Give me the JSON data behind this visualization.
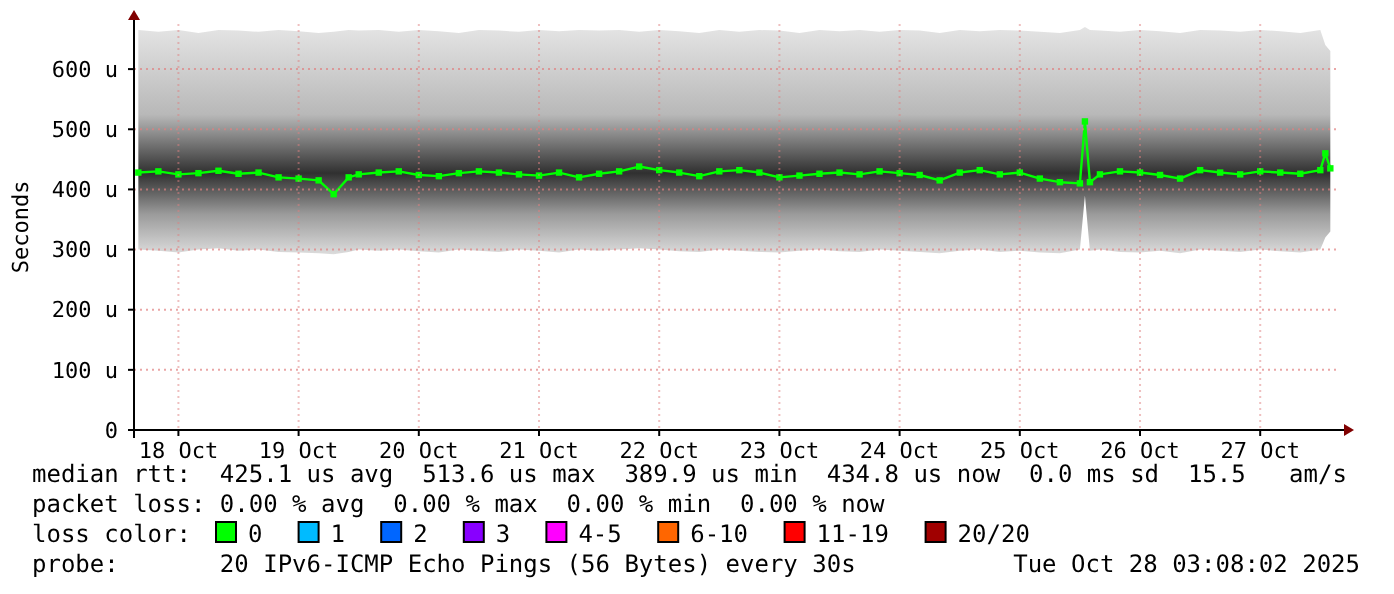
{
  "chart_data": {
    "type": "line",
    "ylabel": "Seconds",
    "legend_title": "loss color:",
    "legend": "bottom",
    "grid": true,
    "marker": "square",
    "xlim": [
      "2025-10-18T03:08",
      "2025-10-28T03:08"
    ],
    "xticks": [
      {
        "value": "2025-10-18T12:00",
        "label": "18 Oct"
      },
      {
        "value": "2025-10-19T12:00",
        "label": "19 Oct"
      },
      {
        "value": "2025-10-20T12:00",
        "label": "20 Oct"
      },
      {
        "value": "2025-10-21T12:00",
        "label": "21 Oct"
      },
      {
        "value": "2025-10-22T12:00",
        "label": "22 Oct"
      },
      {
        "value": "2025-10-23T12:00",
        "label": "23 Oct"
      },
      {
        "value": "2025-10-24T12:00",
        "label": "24 Oct"
      },
      {
        "value": "2025-10-25T12:00",
        "label": "25 Oct"
      },
      {
        "value": "2025-10-26T12:00",
        "label": "26 Oct"
      },
      {
        "value": "2025-10-27T12:00",
        "label": "27 Oct"
      }
    ],
    "ylim": [
      0,
      675
    ],
    "yticks": [
      0,
      {
        "value": 100,
        "label": "100 u"
      },
      {
        "value": 200,
        "label": "200 u"
      },
      {
        "value": 300,
        "label": "300 u"
      },
      {
        "value": 400,
        "label": "400 u"
      },
      {
        "value": 500,
        "label": "500 u"
      },
      {
        "value": 600,
        "label": "600 u"
      }
    ],
    "x": [
      "2025-10-18T04:00",
      "2025-10-18T08:00",
      "2025-10-18T12:00",
      "2025-10-18T16:00",
      "2025-10-18T20:00",
      "2025-10-19T00:00",
      "2025-10-19T04:00",
      "2025-10-19T08:00",
      "2025-10-19T12:00",
      "2025-10-19T16:00",
      "2025-10-19T19:00",
      "2025-10-19T22:00",
      "2025-10-20T00:00",
      "2025-10-20T04:00",
      "2025-10-20T08:00",
      "2025-10-20T12:00",
      "2025-10-20T16:00",
      "2025-10-20T20:00",
      "2025-10-21T00:00",
      "2025-10-21T04:00",
      "2025-10-21T08:00",
      "2025-10-21T12:00",
      "2025-10-21T16:00",
      "2025-10-21T20:00",
      "2025-10-22T00:00",
      "2025-10-22T04:00",
      "2025-10-22T08:00",
      "2025-10-22T12:00",
      "2025-10-22T16:00",
      "2025-10-22T20:00",
      "2025-10-23T00:00",
      "2025-10-23T04:00",
      "2025-10-23T08:00",
      "2025-10-23T12:00",
      "2025-10-23T16:00",
      "2025-10-23T20:00",
      "2025-10-24T00:00",
      "2025-10-24T04:00",
      "2025-10-24T08:00",
      "2025-10-24T12:00",
      "2025-10-24T16:00",
      "2025-10-24T20:00",
      "2025-10-25T00:00",
      "2025-10-25T04:00",
      "2025-10-25T08:00",
      "2025-10-25T12:00",
      "2025-10-25T16:00",
      "2025-10-25T20:00",
      "2025-10-26T00:00",
      "2025-10-26T01:00",
      "2025-10-26T02:00",
      "2025-10-26T04:00",
      "2025-10-26T08:00",
      "2025-10-26T12:00",
      "2025-10-26T16:00",
      "2025-10-26T20:00",
      "2025-10-27T00:00",
      "2025-10-27T04:00",
      "2025-10-27T08:00",
      "2025-10-27T12:00",
      "2025-10-27T16:00",
      "2025-10-27T20:00",
      "2025-10-28T00:00",
      "2025-10-28T01:00",
      "2025-10-28T02:00"
    ],
    "series": [
      {
        "name": "0",
        "color": "#00ff00",
        "values": [
          428,
          430,
          425,
          427,
          431,
          426,
          428,
          420,
          418,
          415,
          392,
          420,
          425,
          428,
          430,
          424,
          422,
          427,
          430,
          428,
          425,
          423,
          428,
          420,
          426,
          430,
          438,
          432,
          428,
          422,
          430,
          432,
          428,
          420,
          423,
          426,
          428,
          425,
          430,
          427,
          424,
          415,
          428,
          432,
          425,
          428,
          418,
          412,
          410,
          513,
          412,
          425,
          430,
          428,
          424,
          418,
          432,
          428,
          425,
          430,
          428,
          426,
          432,
          460,
          435
        ],
        "lower": [
          300,
          298,
          295,
          300,
          302,
          298,
          300,
          296,
          295,
          294,
          292,
          296,
          300,
          298,
          300,
          297,
          295,
          300,
          298,
          296,
          300,
          298,
          295,
          300,
          298,
          300,
          302,
          300,
          297,
          296,
          300,
          298,
          296,
          295,
          298,
          300,
          297,
          296,
          300,
          298,
          296,
          294,
          298,
          300,
          296,
          298,
          295,
          294,
          300,
          390,
          298,
          300,
          296,
          295,
          298,
          294,
          300,
          298,
          296,
          300,
          297,
          295,
          300,
          320,
          330
        ],
        "upper": [
          665,
          662,
          665,
          660,
          665,
          664,
          662,
          665,
          663,
          660,
          662,
          665,
          664,
          665,
          662,
          665,
          663,
          660,
          665,
          664,
          662,
          665,
          663,
          665,
          664,
          665,
          662,
          665,
          663,
          660,
          665,
          662,
          665,
          664,
          660,
          665,
          663,
          665,
          662,
          665,
          664,
          660,
          665,
          663,
          665,
          664,
          662,
          660,
          665,
          670,
          665,
          664,
          662,
          665,
          663,
          660,
          665,
          664,
          662,
          665,
          663,
          660,
          665,
          640,
          630
        ]
      },
      {
        "name": "1",
        "color": "#00bbff",
        "values": [
          null,
          null,
          null,
          null,
          null,
          null,
          null,
          null,
          null,
          null,
          null,
          null,
          null,
          null,
          null,
          null,
          null,
          null,
          null,
          null,
          null,
          null,
          null,
          null,
          null,
          null,
          null,
          null,
          null,
          null,
          null,
          null,
          null,
          null,
          null,
          null,
          null,
          null,
          null,
          null,
          null,
          null,
          null,
          null,
          null,
          null,
          null,
          null,
          null,
          null,
          null,
          null,
          null,
          null,
          null,
          null,
          null,
          null,
          null,
          null,
          null,
          null,
          null,
          null,
          null
        ]
      },
      {
        "name": "2",
        "color": "#0066ff",
        "values": [
          null,
          null,
          null,
          null,
          null,
          null,
          null,
          null,
          null,
          null,
          null,
          null,
          null,
          null,
          null,
          null,
          null,
          null,
          null,
          null,
          null,
          null,
          null,
          null,
          null,
          null,
          null,
          null,
          null,
          null,
          null,
          null,
          null,
          null,
          null,
          null,
          null,
          null,
          null,
          null,
          null,
          null,
          null,
          null,
          null,
          null,
          null,
          null,
          null,
          null,
          null,
          null,
          null,
          null,
          null,
          null,
          null,
          null,
          null,
          null,
          null,
          null,
          null,
          null,
          null
        ]
      },
      {
        "name": "3",
        "color": "#8800ff",
        "values": [
          null,
          null,
          null,
          null,
          null,
          null,
          null,
          null,
          null,
          null,
          null,
          null,
          null,
          null,
          null,
          null,
          null,
          null,
          null,
          null,
          null,
          null,
          null,
          null,
          null,
          null,
          null,
          null,
          null,
          null,
          null,
          null,
          null,
          null,
          null,
          null,
          null,
          null,
          null,
          null,
          null,
          null,
          null,
          null,
          null,
          null,
          null,
          null,
          null,
          null,
          null,
          null,
          null,
          null,
          null,
          null,
          null,
          null,
          null,
          null,
          null,
          null,
          null,
          null,
          null
        ]
      },
      {
        "name": "4-5",
        "color": "#ff00ff",
        "values": [
          null,
          null,
          null,
          null,
          null,
          null,
          null,
          null,
          null,
          null,
          null,
          null,
          null,
          null,
          null,
          null,
          null,
          null,
          null,
          null,
          null,
          null,
          null,
          null,
          null,
          null,
          null,
          null,
          null,
          null,
          null,
          null,
          null,
          null,
          null,
          null,
          null,
          null,
          null,
          null,
          null,
          null,
          null,
          null,
          null,
          null,
          null,
          null,
          null,
          null,
          null,
          null,
          null,
          null,
          null,
          null,
          null,
          null,
          null,
          null,
          null,
          null,
          null,
          null,
          null
        ]
      },
      {
        "name": "6-10",
        "color": "#ff6600",
        "values": [
          null,
          null,
          null,
          null,
          null,
          null,
          null,
          null,
          null,
          null,
          null,
          null,
          null,
          null,
          null,
          null,
          null,
          null,
          null,
          null,
          null,
          null,
          null,
          null,
          null,
          null,
          null,
          null,
          null,
          null,
          null,
          null,
          null,
          null,
          null,
          null,
          null,
          null,
          null,
          null,
          null,
          null,
          null,
          null,
          null,
          null,
          null,
          null,
          null,
          null,
          null,
          null,
          null,
          null,
          null,
          null,
          null,
          null,
          null,
          null,
          null,
          null,
          null,
          null,
          null
        ]
      },
      {
        "name": "11-19",
        "color": "#ff0000",
        "values": [
          null,
          null,
          null,
          null,
          null,
          null,
          null,
          null,
          null,
          null,
          null,
          null,
          null,
          null,
          null,
          null,
          null,
          null,
          null,
          null,
          null,
          null,
          null,
          null,
          null,
          null,
          null,
          null,
          null,
          null,
          null,
          null,
          null,
          null,
          null,
          null,
          null,
          null,
          null,
          null,
          null,
          null,
          null,
          null,
          null,
          null,
          null,
          null,
          null,
          null,
          null,
          null,
          null,
          null,
          null,
          null,
          null,
          null,
          null,
          null,
          null,
          null,
          null,
          null,
          null
        ]
      },
      {
        "name": "20/20",
        "color": "#a00000",
        "values": [
          null,
          null,
          null,
          null,
          null,
          null,
          null,
          null,
          null,
          null,
          null,
          null,
          null,
          null,
          null,
          null,
          null,
          null,
          null,
          null,
          null,
          null,
          null,
          null,
          null,
          null,
          null,
          null,
          null,
          null,
          null,
          null,
          null,
          null,
          null,
          null,
          null,
          null,
          null,
          null,
          null,
          null,
          null,
          null,
          null,
          null,
          null,
          null,
          null,
          null,
          null,
          null,
          null,
          null,
          null,
          null,
          null,
          null,
          null,
          null,
          null,
          null,
          null,
          null,
          null
        ]
      }
    ],
    "annotations": [
      "median rtt:  425.1 us avg  513.6 us max  389.9 us min  434.8 us now  0.0 ms sd  15.5   am/s",
      "packet loss: 0.00 % avg  0.00 % max  0.00 % min  0.00 % now",
      "probe:       20 IPv6-ICMP Echo Pings (56 Bytes) every 30s",
      "Tue Oct 28 03:08:02 2025"
    ]
  }
}
